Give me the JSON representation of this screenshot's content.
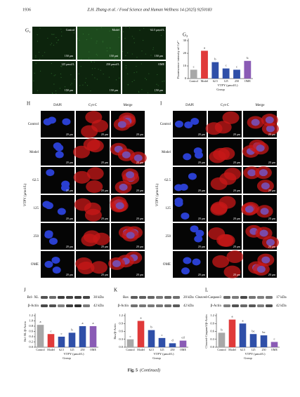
{
  "header": {
    "page_number": "1936",
    "running_title": "Z.H. Zhang et al. / Food Science and Human Wellness 14 (2025) 9250183"
  },
  "panel_g1": {
    "label": "G₁",
    "images": [
      "Control",
      "Model",
      "62.5 μmol/L",
      "125 μmol/L",
      "250 μmol/L",
      "OME"
    ],
    "scale_bar": "150 μm"
  },
  "panel_h": {
    "label": "H",
    "columns": [
      "DAPI",
      "Cyt-C",
      "Merge"
    ],
    "rows": [
      "Control",
      "Model",
      "62.5",
      "125",
      "250",
      "OME"
    ],
    "group_label": "VTPY (μmol/L)",
    "scale_bar": "20 μm"
  },
  "panel_i": {
    "label": "I",
    "columns": [
      "DAPI",
      "Cyt-C",
      "Merge"
    ],
    "rows": [
      "Control",
      "Model",
      "62.5",
      "125",
      "250",
      "OME"
    ],
    "group_label": "VTPY (μmol/L)",
    "scale_bar": "20 μm"
  },
  "blots": [
    {
      "label": "J",
      "bands": [
        {
          "name": "Bcl- XL",
          "size": "30 kDa"
        },
        {
          "name": "β-Actin",
          "size": "42 kDa"
        }
      ]
    },
    {
      "label": "K",
      "bands": [
        {
          "name": "Bax",
          "size": "20 kDa"
        },
        {
          "name": "β-Actin",
          "size": "42 kDa"
        }
      ]
    },
    {
      "label": "L",
      "bands": [
        {
          "name": "Cleaved-Caspase3",
          "size": "17 kDa"
        },
        {
          "name": "β-Actin",
          "size": "42 kDa"
        }
      ]
    }
  ],
  "chart_data": [
    {
      "type": "bar",
      "panel": "G₂",
      "ylabel": "Fluorescence intensity of Ca²⁺",
      "xlabel": "VTPY (μmol/L)",
      "group_label": "Group",
      "categories": [
        "Control",
        "Model",
        "62.5",
        "125",
        "250",
        "OME"
      ],
      "values": [
        7,
        22,
        13,
        8,
        7,
        14
      ],
      "letters": [
        "c",
        "a",
        "b",
        "c",
        "c",
        "b"
      ],
      "colors": [
        "#a8a8a8",
        "#e03a3a",
        "#2f4fa8",
        "#2f4fa8",
        "#2f4fa8",
        "#8a5bb5"
      ],
      "ylim": [
        0,
        30
      ],
      "yticks": [
        0,
        10,
        20,
        30
      ]
    },
    {
      "type": "bar",
      "ylabel": "Bcl-XL/β-Actin",
      "xlabel": "VTPY (μmol/L)",
      "group_label": "Group",
      "categories": [
        "Control",
        "Model",
        "62.5",
        "125",
        "250",
        "OME"
      ],
      "values": [
        0.85,
        0.5,
        0.4,
        0.55,
        0.8,
        0.8
      ],
      "letters": [
        "a",
        "c",
        "c",
        "b",
        "a",
        "a"
      ],
      "colors": [
        "#a8a8a8",
        "#e03a3a",
        "#2f4fa8",
        "#2f4fa8",
        "#2f4fa8",
        "#8a5bb5"
      ],
      "ylim": [
        0,
        1.2
      ],
      "yticks": [
        {
          "value": 0,
          "label": "0.0"
        },
        0.2,
        0.4,
        0.6,
        0.8,
        {
          "value": 1,
          "label": "1.0"
        },
        1.2
      ]
    },
    {
      "type": "bar",
      "ylabel": "Bax/β-Actin",
      "xlabel": "VTPY (μmol/L)",
      "group_label": "Group",
      "categories": [
        "Control",
        "Model",
        "62.5",
        "125",
        "250",
        "OME"
      ],
      "values": [
        0.3,
        1.0,
        0.65,
        0.35,
        0.15,
        0.25
      ],
      "letters": [
        "c",
        "a",
        "b",
        "c",
        "d",
        "cd"
      ],
      "colors": [
        "#a8a8a8",
        "#e03a3a",
        "#2f4fa8",
        "#2f4fa8",
        "#2f4fa8",
        "#8a5bb5"
      ],
      "ylim": [
        0,
        1.2
      ],
      "yticks": [
        {
          "value": 0,
          "label": "0.0"
        },
        0.3,
        0.6,
        0.9,
        1.2
      ]
    },
    {
      "type": "bar",
      "ylabel": "Cleaved-Caspase3/β-Actin",
      "xlabel": "VTPY (μmol/L)",
      "group_label": "Group",
      "categories": [
        "Control",
        "Model",
        "62.5",
        "125",
        "250",
        "OME"
      ],
      "values": [
        0.55,
        1.05,
        0.9,
        0.5,
        0.45,
        0.2
      ],
      "letters": [
        "b",
        "a",
        "a",
        "bc",
        "bc",
        "c"
      ],
      "colors": [
        "#a8a8a8",
        "#e03a3a",
        "#2f4fa8",
        "#2f4fa8",
        "#2f4fa8",
        "#8a5bb5"
      ],
      "ylim": [
        0,
        1.2
      ],
      "yticks": [
        {
          "value": 0,
          "label": "0.0"
        },
        0.3,
        0.6,
        0.9,
        1.2
      ]
    }
  ],
  "caption": {
    "label": "Fig. 5",
    "note": "(Continued)"
  }
}
